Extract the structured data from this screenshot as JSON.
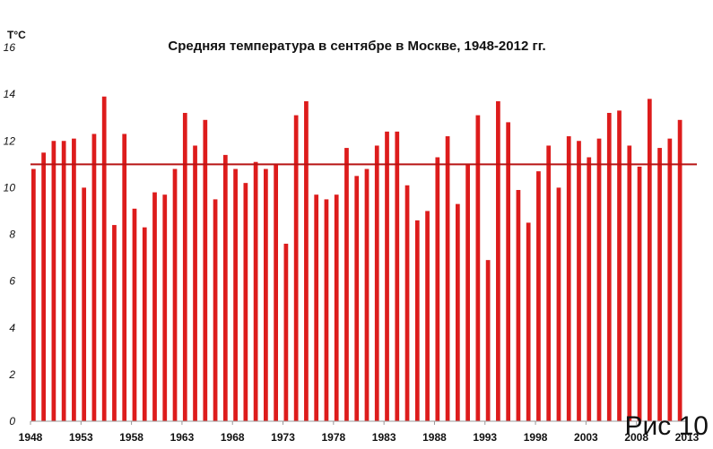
{
  "chart_data": {
    "type": "bar",
    "title": "Средняя температура в сентябре в Москве, 1948-2012 гг.",
    "ylabel": "T°C",
    "xlabel": "",
    "ylim": [
      0,
      16
    ],
    "xlim": [
      1948,
      2013
    ],
    "yticks": [
      0,
      2,
      4,
      6,
      8,
      10,
      12,
      14,
      16
    ],
    "xticks": [
      "1948",
      "1953",
      "1958",
      "1963",
      "1968",
      "1973",
      "1978",
      "1983",
      "1988",
      "1993",
      "1998",
      "2003",
      "2008",
      "2013"
    ],
    "grid": false,
    "legend": "none",
    "bar_color": "#dd1c1c",
    "mean_line": {
      "value": 11.0,
      "color": "#b81414"
    },
    "x": [
      1948,
      1949,
      1950,
      1951,
      1952,
      1953,
      1954,
      1955,
      1956,
      1957,
      1958,
      1959,
      1960,
      1961,
      1962,
      1963,
      1964,
      1965,
      1966,
      1967,
      1968,
      1969,
      1970,
      1971,
      1972,
      1973,
      1974,
      1975,
      1976,
      1977,
      1978,
      1979,
      1980,
      1981,
      1982,
      1983,
      1984,
      1985,
      1986,
      1987,
      1988,
      1989,
      1990,
      1991,
      1992,
      1993,
      1994,
      1995,
      1996,
      1997,
      1998,
      1999,
      2000,
      2001,
      2002,
      2003,
      2004,
      2005,
      2006,
      2007,
      2008,
      2009,
      2010,
      2011,
      2012
    ],
    "values": [
      10.8,
      11.5,
      12.0,
      12.0,
      12.1,
      10.0,
      12.3,
      13.9,
      8.4,
      12.3,
      9.1,
      8.3,
      9.8,
      9.7,
      10.8,
      13.2,
      11.8,
      12.9,
      9.5,
      11.4,
      10.8,
      10.2,
      11.1,
      10.8,
      11.0,
      7.6,
      13.1,
      13.7,
      9.7,
      9.5,
      9.7,
      11.7,
      10.5,
      10.8,
      11.8,
      12.4,
      12.4,
      10.1,
      8.6,
      9.0,
      11.3,
      12.2,
      9.3,
      11.0,
      13.1,
      6.9,
      13.7,
      12.8,
      9.9,
      8.5,
      10.7,
      11.8,
      10.0,
      12.2,
      12.0,
      11.3,
      12.1,
      13.2,
      13.3,
      11.8,
      10.9,
      13.8,
      11.7,
      12.1,
      12.9
    ]
  },
  "figure_label": "Рис 10"
}
